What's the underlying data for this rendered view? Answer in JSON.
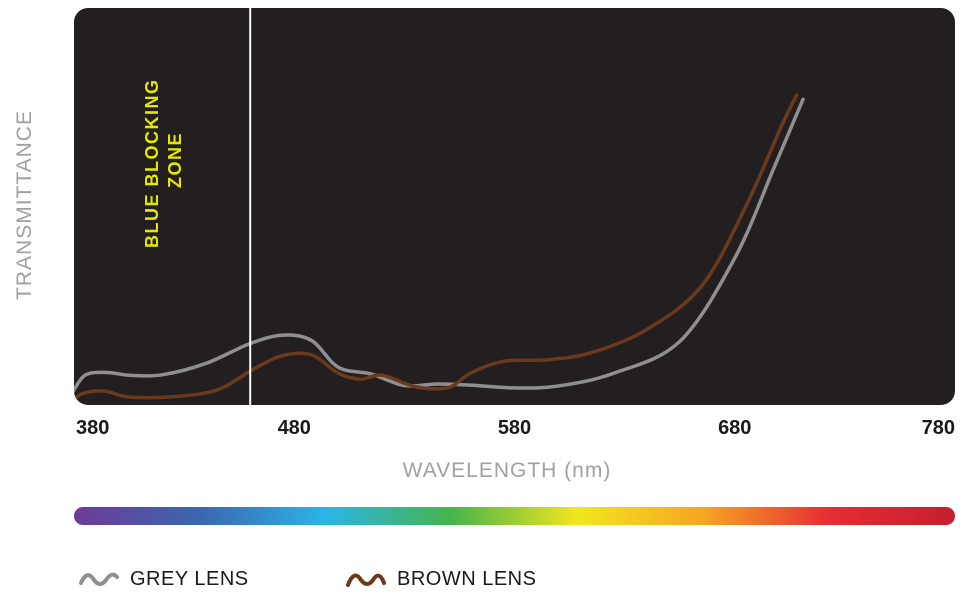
{
  "chart_data": {
    "type": "line",
    "title": "",
    "xlabel": "WAVELENGTH (nm)",
    "ylabel": "TRANSMITTANCE",
    "xlim": [
      380,
      780
    ],
    "x_ticks": [
      "380",
      "480",
      "580",
      "680",
      "780"
    ],
    "grid": false,
    "legend_placement": "bottom-left",
    "plot_background": "#231f20",
    "annotations": [
      {
        "text_line1": "BLUE BLOCKING",
        "text_line2": "ZONE",
        "color": "#e6e600",
        "x_boundary": 460
      }
    ],
    "series": [
      {
        "name": "GREY LENS",
        "color": "#8f8f8f",
        "points": [
          [
            379,
            2.8
          ],
          [
            385,
            7.5
          ],
          [
            395,
            8.2
          ],
          [
            405,
            7.5
          ],
          [
            420,
            7.6
          ],
          [
            440,
            10.5
          ],
          [
            460,
            15.5
          ],
          [
            475,
            17.6
          ],
          [
            488,
            16.2
          ],
          [
            500,
            9.5
          ],
          [
            515,
            7.8
          ],
          [
            530,
            4.9
          ],
          [
            545,
            5.3
          ],
          [
            560,
            5.0
          ],
          [
            580,
            4.3
          ],
          [
            600,
            4.8
          ],
          [
            625,
            8.0
          ],
          [
            655,
            16.0
          ],
          [
            680,
            37.0
          ],
          [
            698,
            60.0
          ],
          [
            711,
            77.0
          ]
        ]
      },
      {
        "name": "BROWN LENS",
        "color": "#6b3a1b",
        "points": [
          [
            379,
            1.0
          ],
          [
            384,
            2.9
          ],
          [
            394,
            3.5
          ],
          [
            405,
            2.0
          ],
          [
            425,
            2.1
          ],
          [
            445,
            3.8
          ],
          [
            462,
            9.2
          ],
          [
            475,
            12.5
          ],
          [
            488,
            12.6
          ],
          [
            500,
            8.0
          ],
          [
            510,
            6.5
          ],
          [
            520,
            7.5
          ],
          [
            535,
            4.6
          ],
          [
            550,
            4.4
          ],
          [
            560,
            8.0
          ],
          [
            575,
            11.0
          ],
          [
            595,
            11.4
          ],
          [
            615,
            13.2
          ],
          [
            640,
            19.0
          ],
          [
            665,
            30.0
          ],
          [
            685,
            50.0
          ],
          [
            701,
            70.0
          ],
          [
            708,
            78.0
          ]
        ]
      }
    ],
    "spectrum_bar": {
      "colors": [
        "#6e3a97",
        "#3a67b0",
        "#2cb4e6",
        "#45b549",
        "#f2e61e",
        "#f6a523",
        "#e52d32",
        "#c51f2e"
      ]
    }
  }
}
